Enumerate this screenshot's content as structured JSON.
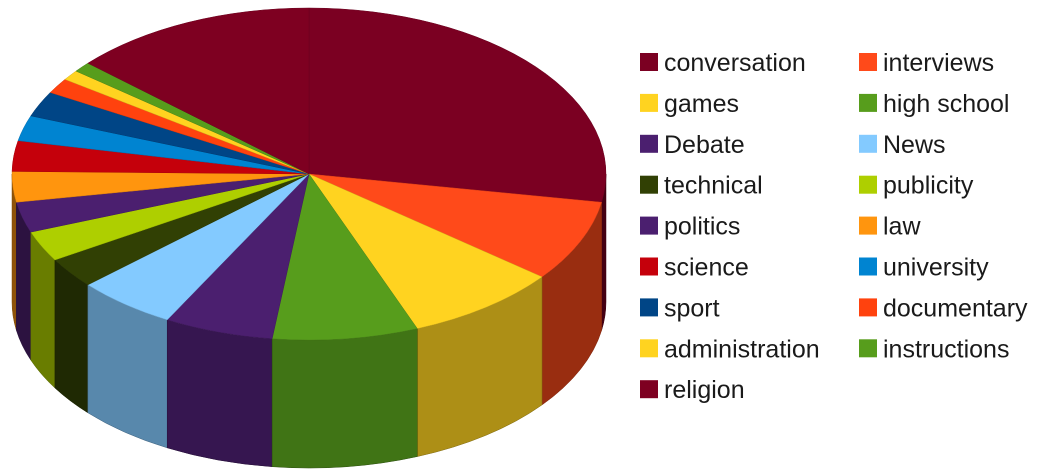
{
  "chart_data": {
    "type": "pie",
    "style": "3d",
    "title": "",
    "legend_position": "right",
    "slices": [
      {
        "label": "conversation",
        "value": 28.0,
        "color": "#7b0022"
      },
      {
        "label": "interviews",
        "value": 8.0,
        "color": "#ff4a1a"
      },
      {
        "label": "games",
        "value": 8.5,
        "color": "#ffd320"
      },
      {
        "label": "high school",
        "value": 8.0,
        "color": "#579d1c"
      },
      {
        "label": "Debate",
        "value": 6.0,
        "color": "#4b1f6f"
      },
      {
        "label": "News",
        "value": 5.5,
        "color": "#83caff"
      },
      {
        "label": "technical",
        "value": 3.0,
        "color": "#314004"
      },
      {
        "label": "publicity",
        "value": 3.0,
        "color": "#aecf00"
      },
      {
        "label": "politics",
        "value": 3.0,
        "color": "#4b1f6f"
      },
      {
        "label": "law",
        "value": 3.0,
        "color": "#ff950e"
      },
      {
        "label": "science",
        "value": 3.0,
        "color": "#c5000b"
      },
      {
        "label": "university",
        "value": 2.5,
        "color": "#0084d1"
      },
      {
        "label": "sport",
        "value": 2.5,
        "color": "#004586"
      },
      {
        "label": "documentary",
        "value": 1.5,
        "color": "#ff420e"
      },
      {
        "label": "administration",
        "value": 1.0,
        "color": "#ffd320"
      },
      {
        "label": "instructions",
        "value": 1.0,
        "color": "#579d1c"
      },
      {
        "label": "religion",
        "value": 13.5,
        "color": "#7e0021"
      }
    ],
    "legend_order": [
      "conversation",
      "interviews",
      "games",
      "high school",
      "Debate",
      "News",
      "technical",
      "publicity",
      "politics",
      "law",
      "science",
      "university",
      "sport",
      "documentary",
      "administration",
      "instructions",
      "religion"
    ]
  }
}
